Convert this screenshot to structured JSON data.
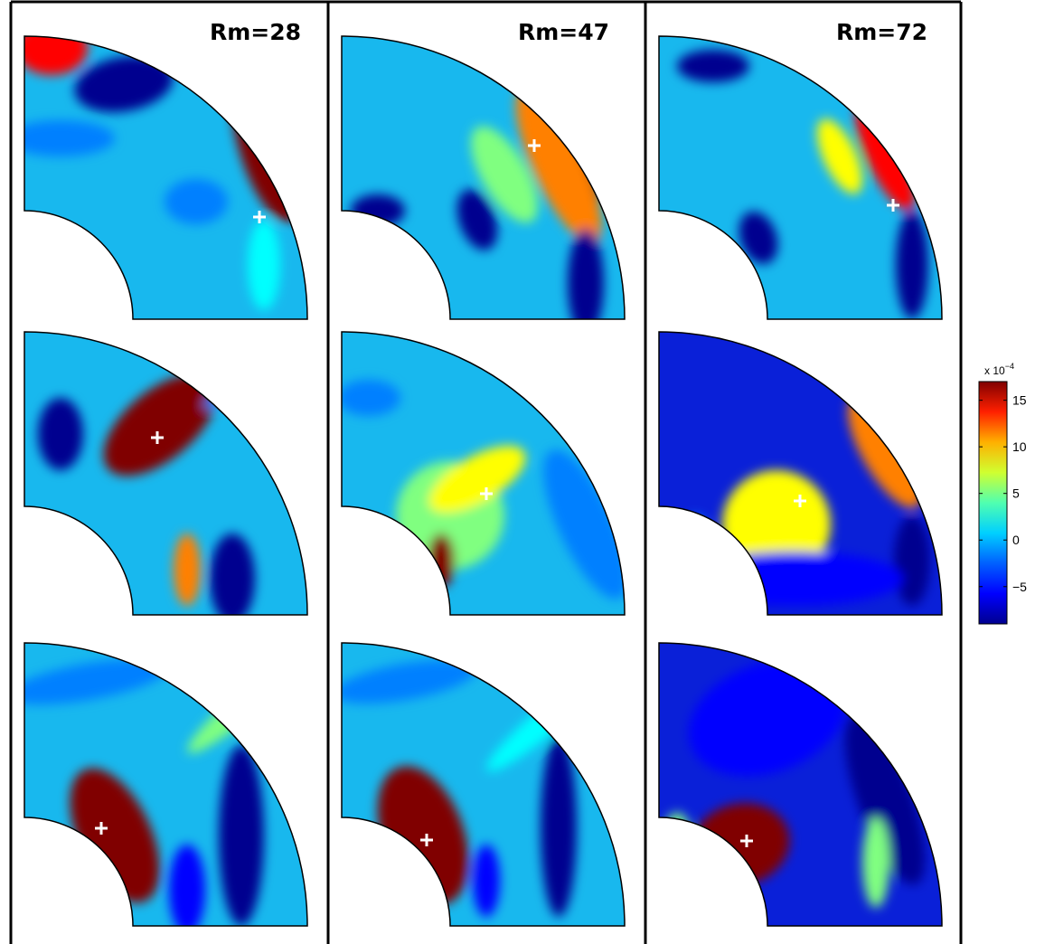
{
  "chart_data": [
    {
      "type": "heatmap",
      "title": "Rm=28",
      "panels": [
        {
          "row": 1,
          "marker": "white cross"
        },
        {
          "row": 2,
          "marker": "white cross"
        },
        {
          "row": 3,
          "marker": "white cross"
        }
      ]
    },
    {
      "type": "heatmap",
      "title": "Rm=47",
      "panels": [
        {
          "row": 1,
          "marker": "white cross"
        },
        {
          "row": 2,
          "marker": "white cross"
        },
        {
          "row": 3,
          "marker": "white cross"
        }
      ]
    },
    {
      "type": "heatmap",
      "title": "Rm=72",
      "panels": [
        {
          "row": 1,
          "marker": "white cross"
        },
        {
          "row": 2,
          "marker": "white cross"
        },
        {
          "row": 3,
          "marker": "white cross"
        }
      ]
    }
  ],
  "colorbar": {
    "multiplier_base": "x 10",
    "multiplier_exponent": "−4",
    "ticks": [
      {
        "value": 15,
        "label": "15"
      },
      {
        "value": 10,
        "label": "10"
      },
      {
        "value": 5,
        "label": "5"
      },
      {
        "value": 0,
        "label": "0"
      },
      {
        "value": -5,
        "label": "−5"
      }
    ],
    "range": [
      -9,
      17
    ],
    "colormap": "jet"
  },
  "colors": {
    "jet": [
      "#00008f",
      "#0000ff",
      "#0080ff",
      "#00ffff",
      "#80ff80",
      "#ffff00",
      "#ff8000",
      "#ff0000",
      "#800000"
    ]
  }
}
